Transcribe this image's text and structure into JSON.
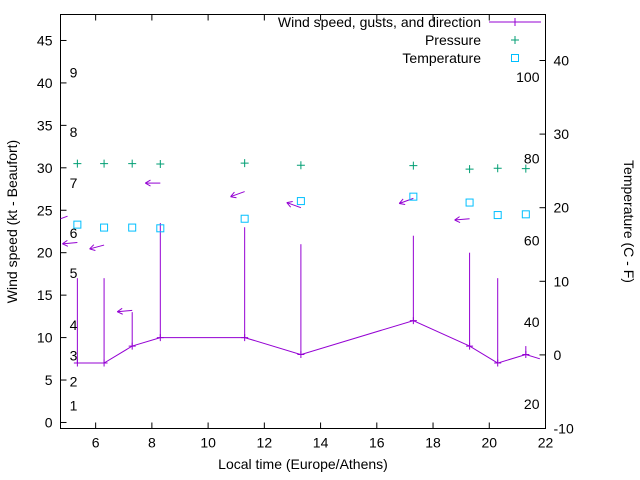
{
  "chart_data": {
    "type": "line",
    "title": "",
    "xlabel": "Local time (Europe/Athens)",
    "ylabel": "Wind speed (kt - Beaufort)",
    "y2label": "Temperature (C - F)",
    "xlim": [
      4.75,
      22
    ],
    "ylim": [
      -0.71,
      48.06
    ],
    "y2lim": [
      -10,
      46.25
    ],
    "xticks": [
      6,
      8,
      10,
      12,
      14,
      16,
      18,
      20,
      22
    ],
    "yticks": [
      0,
      5,
      10,
      15,
      20,
      25,
      30,
      35,
      40,
      45
    ],
    "y2ticks": [
      -10,
      0,
      10,
      20,
      30,
      40
    ],
    "grid": false,
    "background": "#ffffff",
    "axis_color": "#000000",
    "beaufort_labels": [
      {
        "label": "1",
        "kt": 2.0
      },
      {
        "label": "2",
        "kt": 4.8
      },
      {
        "label": "3",
        "kt": 7.9
      },
      {
        "label": "4",
        "kt": 11.5
      },
      {
        "label": "5",
        "kt": 17.6
      },
      {
        "label": "6",
        "kt": 22.3
      },
      {
        "label": "7",
        "kt": 28.2
      },
      {
        "label": "8",
        "kt": 34.2
      },
      {
        "label": "9",
        "kt": 41.2
      }
    ],
    "fahrenheit_labels": [
      {
        "label": "20",
        "f": 20
      },
      {
        "label": "40",
        "f": 40
      },
      {
        "label": "60",
        "f": 60
      },
      {
        "label": "80",
        "f": 80
      },
      {
        "label": "100",
        "f": 100
      }
    ],
    "legend": [
      {
        "label": "Wind speed, gusts, and direction",
        "color": "#9400d3",
        "marker": "line-plus"
      },
      {
        "label": "Pressure",
        "color": "#009e73",
        "marker": "plus"
      },
      {
        "label": "Temperature",
        "color": "#00bfff",
        "marker": "square"
      }
    ],
    "x": [
      5.35,
      6.3,
      7.3,
      8.3,
      11.3,
      13.3,
      17.3,
      19.3,
      20.3,
      21.3
    ],
    "series": [
      {
        "name": "wind_speed_kt",
        "color": "#9400d3",
        "values": [
          7,
          7,
          9,
          10,
          10,
          8,
          12,
          9,
          7,
          8
        ]
      },
      {
        "name": "wind_gust_kt",
        "color": "#9400d3",
        "values": [
          17,
          17,
          13,
          23.5,
          23,
          21,
          22,
          20,
          17,
          9
        ]
      },
      {
        "name": "pressure_inHg",
        "color": "#009e73",
        "values": [
          30.5,
          30.5,
          30.5,
          30.45,
          30.55,
          30.3,
          30.25,
          29.85,
          29.95,
          29.9
        ]
      },
      {
        "name": "temperature_C",
        "color": "#00bfff",
        "values": [
          17.7,
          17.3,
          17.3,
          17.2,
          18.5,
          20.9,
          21.5,
          20.7,
          19.0,
          19.1
        ]
      }
    ],
    "wind_line_extra_end": {
      "x": 21.8,
      "y": 7.5
    },
    "direction_arrows": [
      {
        "x": 5.0,
        "kt": 24.3,
        "angle_deg": 200
      },
      {
        "x": 5.35,
        "kt": 21.2,
        "angle_deg": 185
      },
      {
        "x": 6.3,
        "kt": 20.9,
        "angle_deg": 195
      },
      {
        "x": 7.3,
        "kt": 13.2,
        "angle_deg": 185
      },
      {
        "x": 8.3,
        "kt": 28.2,
        "angle_deg": 180
      },
      {
        "x": 11.3,
        "kt": 27.2,
        "angle_deg": 200
      },
      {
        "x": 13.3,
        "kt": 25.3,
        "angle_deg": 160
      },
      {
        "x": 17.3,
        "kt": 26.4,
        "angle_deg": 200
      },
      {
        "x": 19.3,
        "kt": 24.0,
        "angle_deg": 185
      }
    ]
  }
}
